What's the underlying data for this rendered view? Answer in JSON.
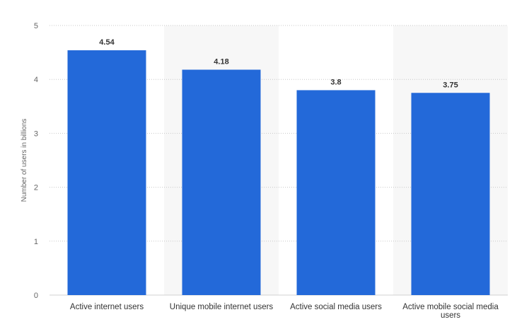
{
  "chart_data": {
    "type": "bar",
    "categories": [
      "Active internet users",
      "Unique mobile internet users",
      "Active social media users",
      "Active mobile social media users"
    ],
    "values": [
      4.54,
      4.18,
      3.8,
      3.75
    ],
    "value_labels": [
      "4.54",
      "4.18",
      "3.8",
      "3.75"
    ],
    "title": "",
    "xlabel": "",
    "ylabel": "Number of users in billions",
    "ylim": [
      0,
      5
    ],
    "yticks": [
      "0",
      "1",
      "2",
      "3",
      "4",
      "5"
    ],
    "grid": true,
    "legend": "none",
    "colors": {
      "bar": "#2369d9",
      "alt_band": "#f7f7f7",
      "grid": "#c8c8c8"
    }
  }
}
